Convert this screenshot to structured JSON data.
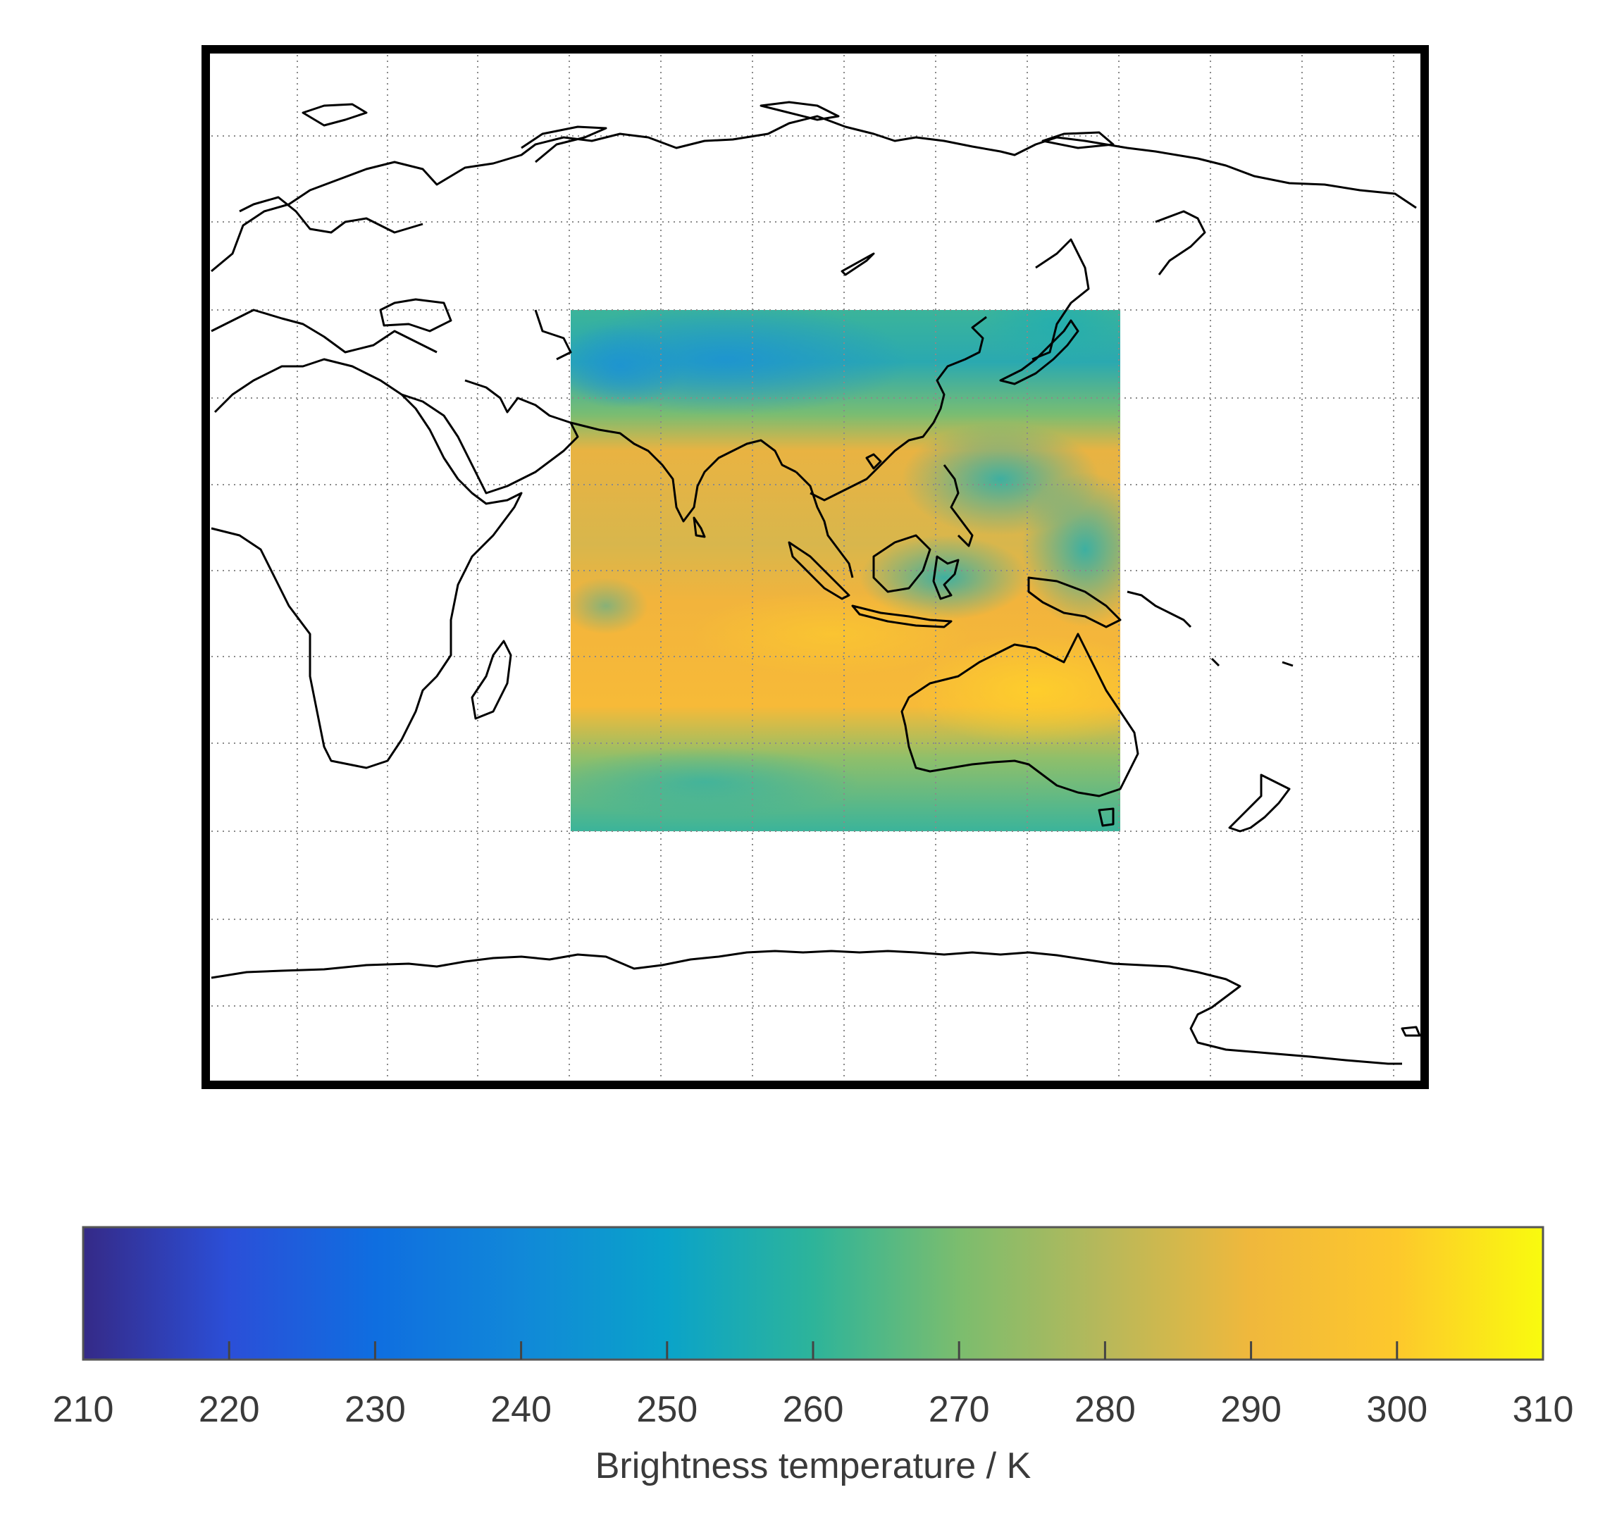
{
  "map": {
    "grid_style": "dotted",
    "frame_color": "#000000",
    "coastline_color": "#000000"
  },
  "heatmap_region": {
    "colormap": "parula"
  },
  "colorbar": {
    "label": "Brightness temperature / K",
    "min": 210,
    "max": 310,
    "ticks": [
      "210",
      "220",
      "230",
      "240",
      "250",
      "260",
      "270",
      "280",
      "290",
      "300",
      "310"
    ],
    "colors": {
      "210": "#352a87",
      "220": "#2b4fd8",
      "230": "#0f6ee0",
      "240": "#1188d8",
      "250": "#0aa3c9",
      "260": "#2db49a",
      "270": "#7bbd6e",
      "280": "#b8b85a",
      "290": "#f0b83c",
      "300": "#fdc82c",
      "310": "#f9fb0e"
    }
  },
  "chart_data": {
    "type": "heatmap",
    "title": "",
    "colorbar_label": "Brightness temperature / K",
    "value_range": [
      210,
      310
    ],
    "colorbar_ticks": [
      210,
      220,
      230,
      240,
      250,
      260,
      270,
      280,
      290,
      300,
      310
    ],
    "grid": true
  }
}
